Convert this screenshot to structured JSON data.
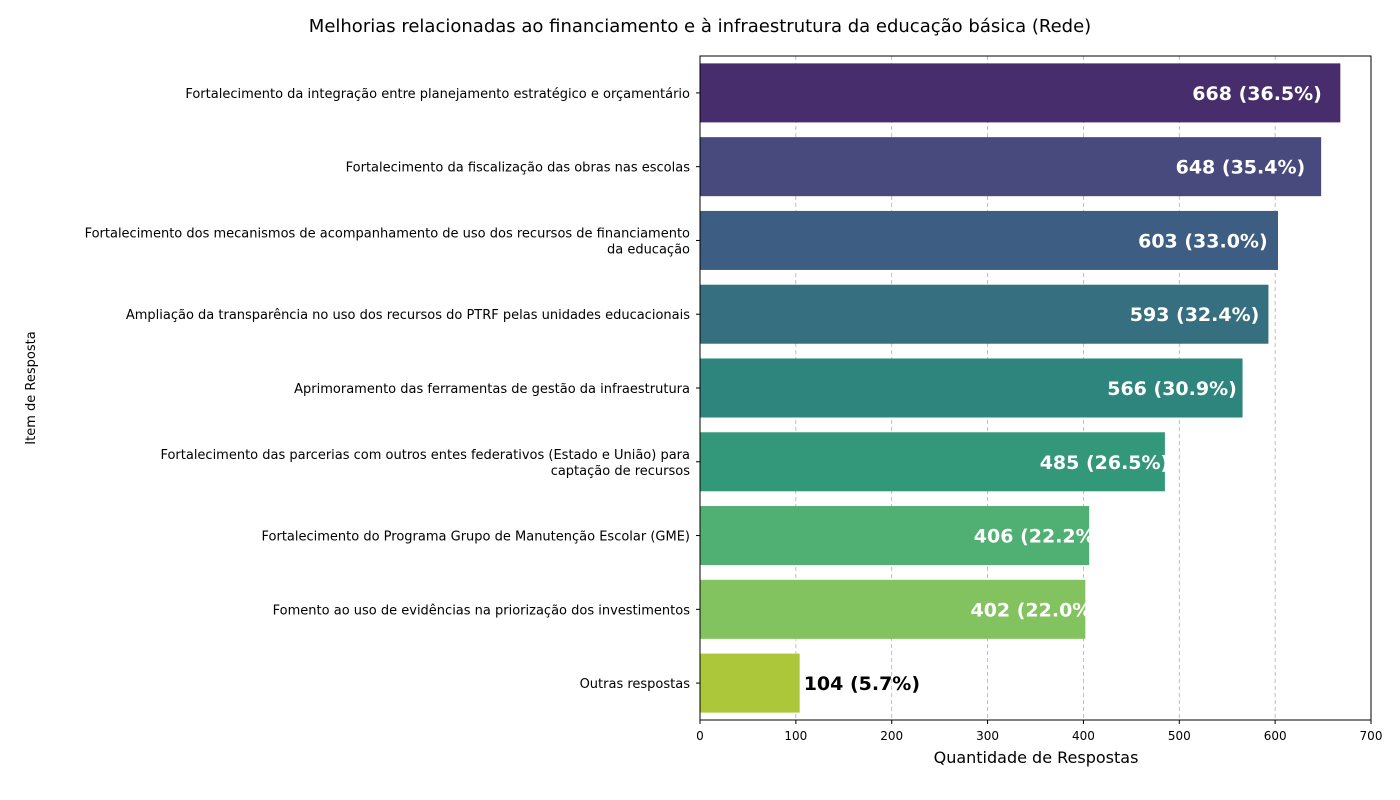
{
  "chart_data": {
    "type": "bar",
    "orientation": "horizontal",
    "title": "Melhorias relacionadas ao financiamento e à infraestrutura da educação básica (Rede)",
    "xlabel": "Quantidade de Respostas",
    "ylabel": "Item de Resposta",
    "xlim": [
      0,
      700
    ],
    "xticks": [
      0,
      100,
      200,
      300,
      400,
      500,
      600,
      700
    ],
    "grid": "vertical dashed",
    "categories": [
      [
        "Fortalecimento da integração entre planejamento estratégico e orçamentário"
      ],
      [
        "Fortalecimento da fiscalização das obras nas escolas"
      ],
      [
        "Fortalecimento dos mecanismos de acompanhamento de uso dos recursos de financiamento",
        "da educação"
      ],
      [
        "Ampliação da transparência no uso dos recursos do PTRF pelas unidades educacionais"
      ],
      [
        "Aprimoramento das ferramentas de gestão da infraestrutura"
      ],
      [
        "Fortalecimento das parcerias com outros entes federativos (Estado e União) para",
        "captação de recursos"
      ],
      [
        "Fortalecimento do Programa Grupo de Manutenção Escolar (GME)"
      ],
      [
        "Fomento ao uso de evidências na priorização dos investimentos"
      ],
      [
        "Outras respostas"
      ]
    ],
    "values": [
      668,
      648,
      603,
      593,
      566,
      485,
      406,
      402,
      104
    ],
    "data_labels": [
      "668 (36.5%)",
      "648 (35.4%)",
      "603 (33.0%)",
      "593 (32.4%)",
      "566 (30.9%)",
      "485 (26.5%)",
      "406 (22.2%)",
      "402 (22.0%)",
      "104 (5.7%)"
    ],
    "colors": [
      "#482d6c",
      "#484a7d",
      "#3e5d82",
      "#366f80",
      "#2d857e",
      "#339879",
      "#50af72",
      "#82c35f",
      "#adc73b"
    ]
  }
}
